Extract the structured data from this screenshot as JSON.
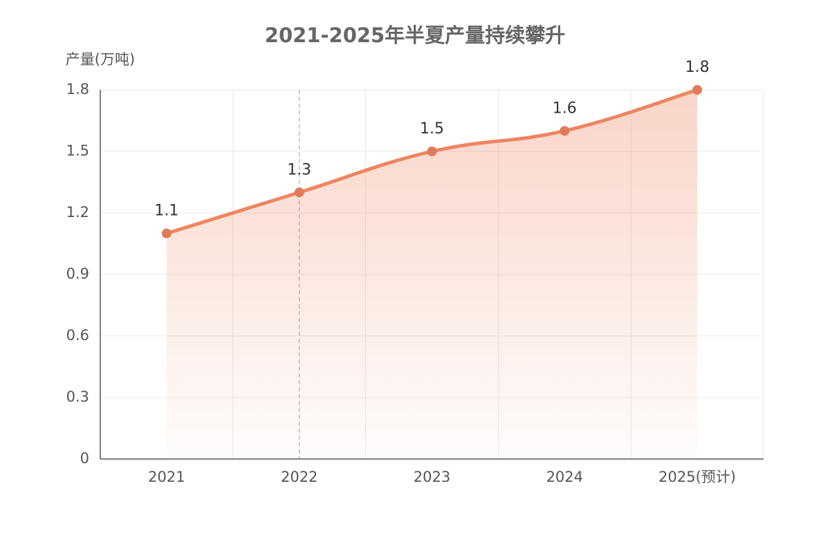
{
  "chart_data": {
    "type": "line",
    "title": "2021-2025年半夏产量持续攀升",
    "y_label": "产量(万吨)",
    "categories": [
      "2021",
      "2022",
      "2023",
      "2024",
      "2025(预计)"
    ],
    "series": [
      {
        "name": "产量",
        "color": "#ed8660",
        "values": [
          1.1,
          1.3,
          1.5,
          1.6,
          1.8
        ]
      }
    ],
    "ylim": [
      0,
      1.8
    ],
    "yticks": [
      0,
      0.3,
      0.6,
      0.9,
      1.2,
      1.5,
      1.8
    ],
    "grid": true
  }
}
